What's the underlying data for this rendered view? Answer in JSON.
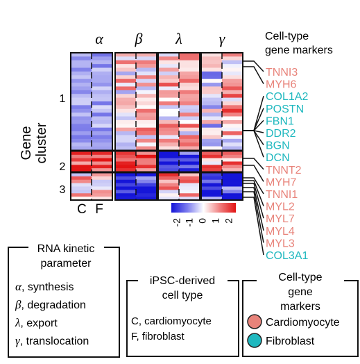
{
  "param_headers": [
    {
      "symbol": "α"
    },
    {
      "symbol": "β"
    },
    {
      "symbol": "λ"
    },
    {
      "symbol": "γ"
    }
  ],
  "y_axis_label": [
    "Gene",
    "cluster"
  ],
  "clusters": [
    "1",
    "2",
    "3"
  ],
  "cell_types": [
    "C",
    "F"
  ],
  "colorbar": {
    "ticks": [
      "-2",
      "-1",
      "0",
      "1",
      "2"
    ],
    "low_color": "#1515d8",
    "mid_color": "#ffffff",
    "high_color": "#e21414"
  },
  "markers_title": [
    "Cell-type",
    "gene markers"
  ],
  "genes": [
    {
      "name": "TNNI3",
      "type": "cardiomyocyte"
    },
    {
      "name": "MYH6",
      "type": "cardiomyocyte"
    },
    {
      "name": "COL1A2",
      "type": "fibroblast"
    },
    {
      "name": "POSTN",
      "type": "fibroblast"
    },
    {
      "name": "FBN1",
      "type": "fibroblast"
    },
    {
      "name": "DDR2",
      "type": "fibroblast"
    },
    {
      "name": "BGN",
      "type": "fibroblast"
    },
    {
      "name": "DCN",
      "type": "fibroblast"
    },
    {
      "name": "TNNT2",
      "type": "cardiomyocyte"
    },
    {
      "name": "MYH7",
      "type": "cardiomyocyte"
    },
    {
      "name": "TNNI1",
      "type": "cardiomyocyte"
    },
    {
      "name": "MYL2",
      "type": "cardiomyocyte"
    },
    {
      "name": "MYL7",
      "type": "cardiomyocyte"
    },
    {
      "name": "MYL4",
      "type": "cardiomyocyte"
    },
    {
      "name": "MYL3",
      "type": "cardiomyocyte"
    },
    {
      "name": "COL3A1",
      "type": "fibroblast"
    }
  ],
  "colors": {
    "cardiomyocyte": "#e8837a",
    "fibroblast": "#1fb8bf"
  },
  "legend_kinetic": {
    "title": [
      "RNA kinetic",
      "parameter"
    ],
    "items": [
      {
        "symbol": "α",
        "text": ", synthesis"
      },
      {
        "symbol": "β",
        "text": ", degradation"
      },
      {
        "symbol": "λ",
        "text": ", export"
      },
      {
        "symbol": "γ",
        "text": ", translocation"
      }
    ]
  },
  "legend_celltype": {
    "title": [
      "iPSC-derived",
      "cell type"
    ],
    "items": [
      "C, cardiomyocyte",
      "F, fibroblast"
    ]
  },
  "legend_markers": {
    "title": [
      "Cell-type",
      "gene",
      "markers"
    ],
    "items": [
      {
        "label": "Cardiomyocyte",
        "color": "#e8837a"
      },
      {
        "label": "Fibroblast",
        "color": "#1fb8bf"
      }
    ]
  }
}
